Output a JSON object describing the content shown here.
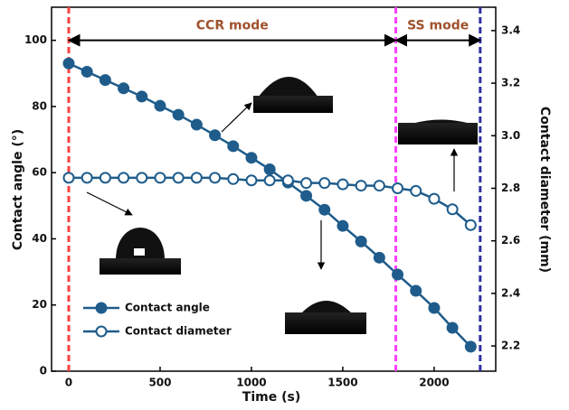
{
  "chart_data": {
    "type": "line",
    "x_label": "Time (s)",
    "y_label": "Contact angle (°)",
    "y2_label": "Contact diameter (mm)",
    "x": [
      0,
      100,
      200,
      300,
      400,
      500,
      600,
      700,
      800,
      900,
      1000,
      1100,
      1200,
      1300,
      1400,
      1500,
      1600,
      1700,
      1800,
      1900,
      2000,
      2100,
      2200
    ],
    "series": [
      {
        "name": "Contact angle",
        "color": "#1f5c8b",
        "marker": "filled",
        "values": [
          93,
          90.5,
          88,
          85.5,
          83,
          80.2,
          77.5,
          74.5,
          71.3,
          68,
          64.5,
          61,
          57,
          53,
          48.8,
          43.9,
          39.2,
          34.3,
          29.2,
          24.3,
          19.1,
          13.1,
          7.4
        ]
      },
      {
        "name": "Contact diameter",
        "color": "#1f5c8b",
        "marker": "open",
        "axis": "y2",
        "values": [
          2.84,
          2.84,
          2.84,
          2.84,
          2.84,
          2.84,
          2.84,
          2.84,
          2.84,
          2.835,
          2.83,
          2.83,
          2.83,
          2.82,
          2.82,
          2.815,
          2.81,
          2.81,
          2.8,
          2.79,
          2.76,
          2.72,
          2.66
        ]
      }
    ],
    "xlim": [
      -94,
      2337
    ],
    "xticks": [
      0,
      500,
      1000,
      1500,
      2000
    ],
    "ylim": [
      0,
      110
    ],
    "yticks": [
      0,
      20,
      40,
      60,
      80,
      100
    ],
    "y2lim": [
      2.104,
      3.489
    ],
    "y2ticks": [
      2.2,
      2.4,
      2.6,
      2.8,
      {
        "value": 3,
        "label": "3.0"
      },
      3.2,
      3.4
    ],
    "vlines": [
      {
        "x": 0,
        "color": "#ff4040"
      },
      {
        "x": 1790,
        "color": "#ff40ff"
      },
      {
        "x": 2252,
        "color": "#3030a0"
      }
    ],
    "annotations": [
      {
        "text": "CCR mode",
        "x": [
          0,
          1790
        ],
        "y": 100
      },
      {
        "text": "SS mode",
        "x": [
          1790,
          2252
        ],
        "y": 100
      }
    ],
    "legend": "lower left"
  }
}
